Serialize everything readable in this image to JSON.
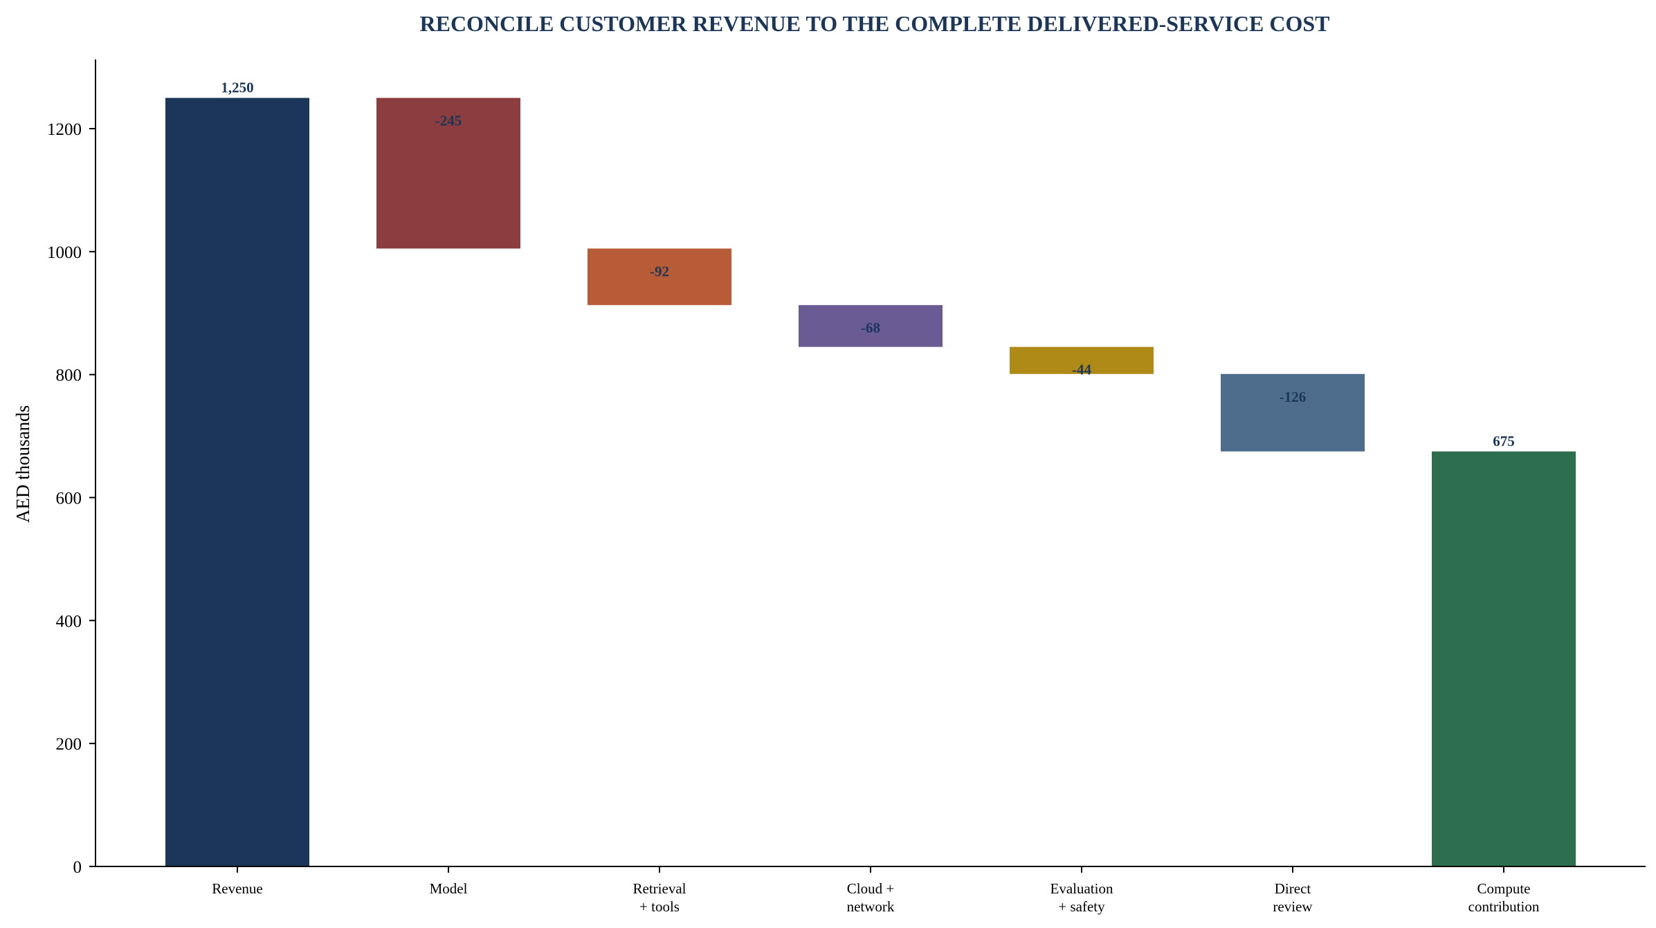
{
  "chart_data": {
    "type": "bar",
    "subtype": "waterfall",
    "title": "RECONCILE CUSTOMER REVENUE TO THE COMPLETE DELIVERED-SERVICE COST",
    "xlabel": "",
    "ylabel": "AED thousands",
    "ylim": [
      0,
      1312.5
    ],
    "yticks": [
      0,
      200,
      400,
      600,
      800,
      1000,
      1200
    ],
    "grid": false,
    "legend": "none",
    "categories": [
      [
        "Revenue"
      ],
      [
        "Model"
      ],
      [
        "Retrieval",
        "+ tools"
      ],
      [
        "Cloud +",
        "network"
      ],
      [
        "Evaluation",
        "+ safety"
      ],
      [
        "Direct",
        "review"
      ],
      [
        "Compute",
        "contribution"
      ]
    ],
    "values": [
      1250,
      -245,
      -92,
      -68,
      -44,
      -126,
      675
    ],
    "kinds": [
      "total",
      "delta",
      "delta",
      "delta",
      "delta",
      "delta",
      "total"
    ],
    "data_labels": [
      "1,250",
      "-245",
      "-92",
      "-68",
      "-44",
      "-126",
      "675"
    ],
    "colors": [
      "#1b3658",
      "#8b3d3f",
      "#b85c37",
      "#6b5b95",
      "#b08a16",
      "#4e6d8c",
      "#2d6e4f"
    ],
    "title_color": "#1b3658",
    "label_color": "#1b3658"
  }
}
